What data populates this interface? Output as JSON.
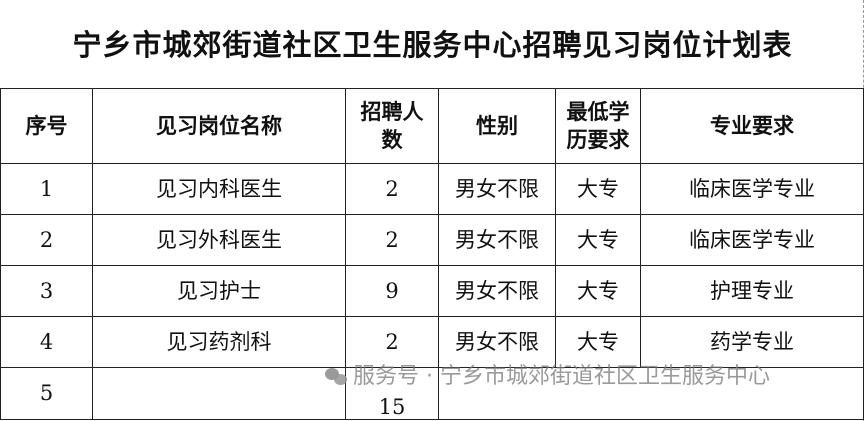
{
  "title": "宁乡市城郊街道社区卫生服务中心招聘见习岗位计划表",
  "table": {
    "headers": [
      "序号",
      "见习岗位名称",
      "招聘人数",
      "性别",
      "最低学历要求",
      "专业要求"
    ],
    "rows": [
      [
        "1",
        "见习内科医生",
        "2",
        "男女不限",
        "大专",
        "临床医学专业"
      ],
      [
        "2",
        "见习外科医生",
        "2",
        "男女不限",
        "大专",
        "临床医学专业"
      ],
      [
        "3",
        "见习护士",
        "9",
        "男女不限",
        "大专",
        "护理专业"
      ],
      [
        "4",
        "见习药剂科",
        "2",
        "男女不限",
        "大专",
        "药学专业"
      ],
      [
        "5",
        "",
        "15",
        "",
        "",
        ""
      ]
    ]
  },
  "watermark": {
    "icon": "wechat-icon",
    "text": "服务号 · 宁乡市城郊街道社区卫生服务中心"
  }
}
